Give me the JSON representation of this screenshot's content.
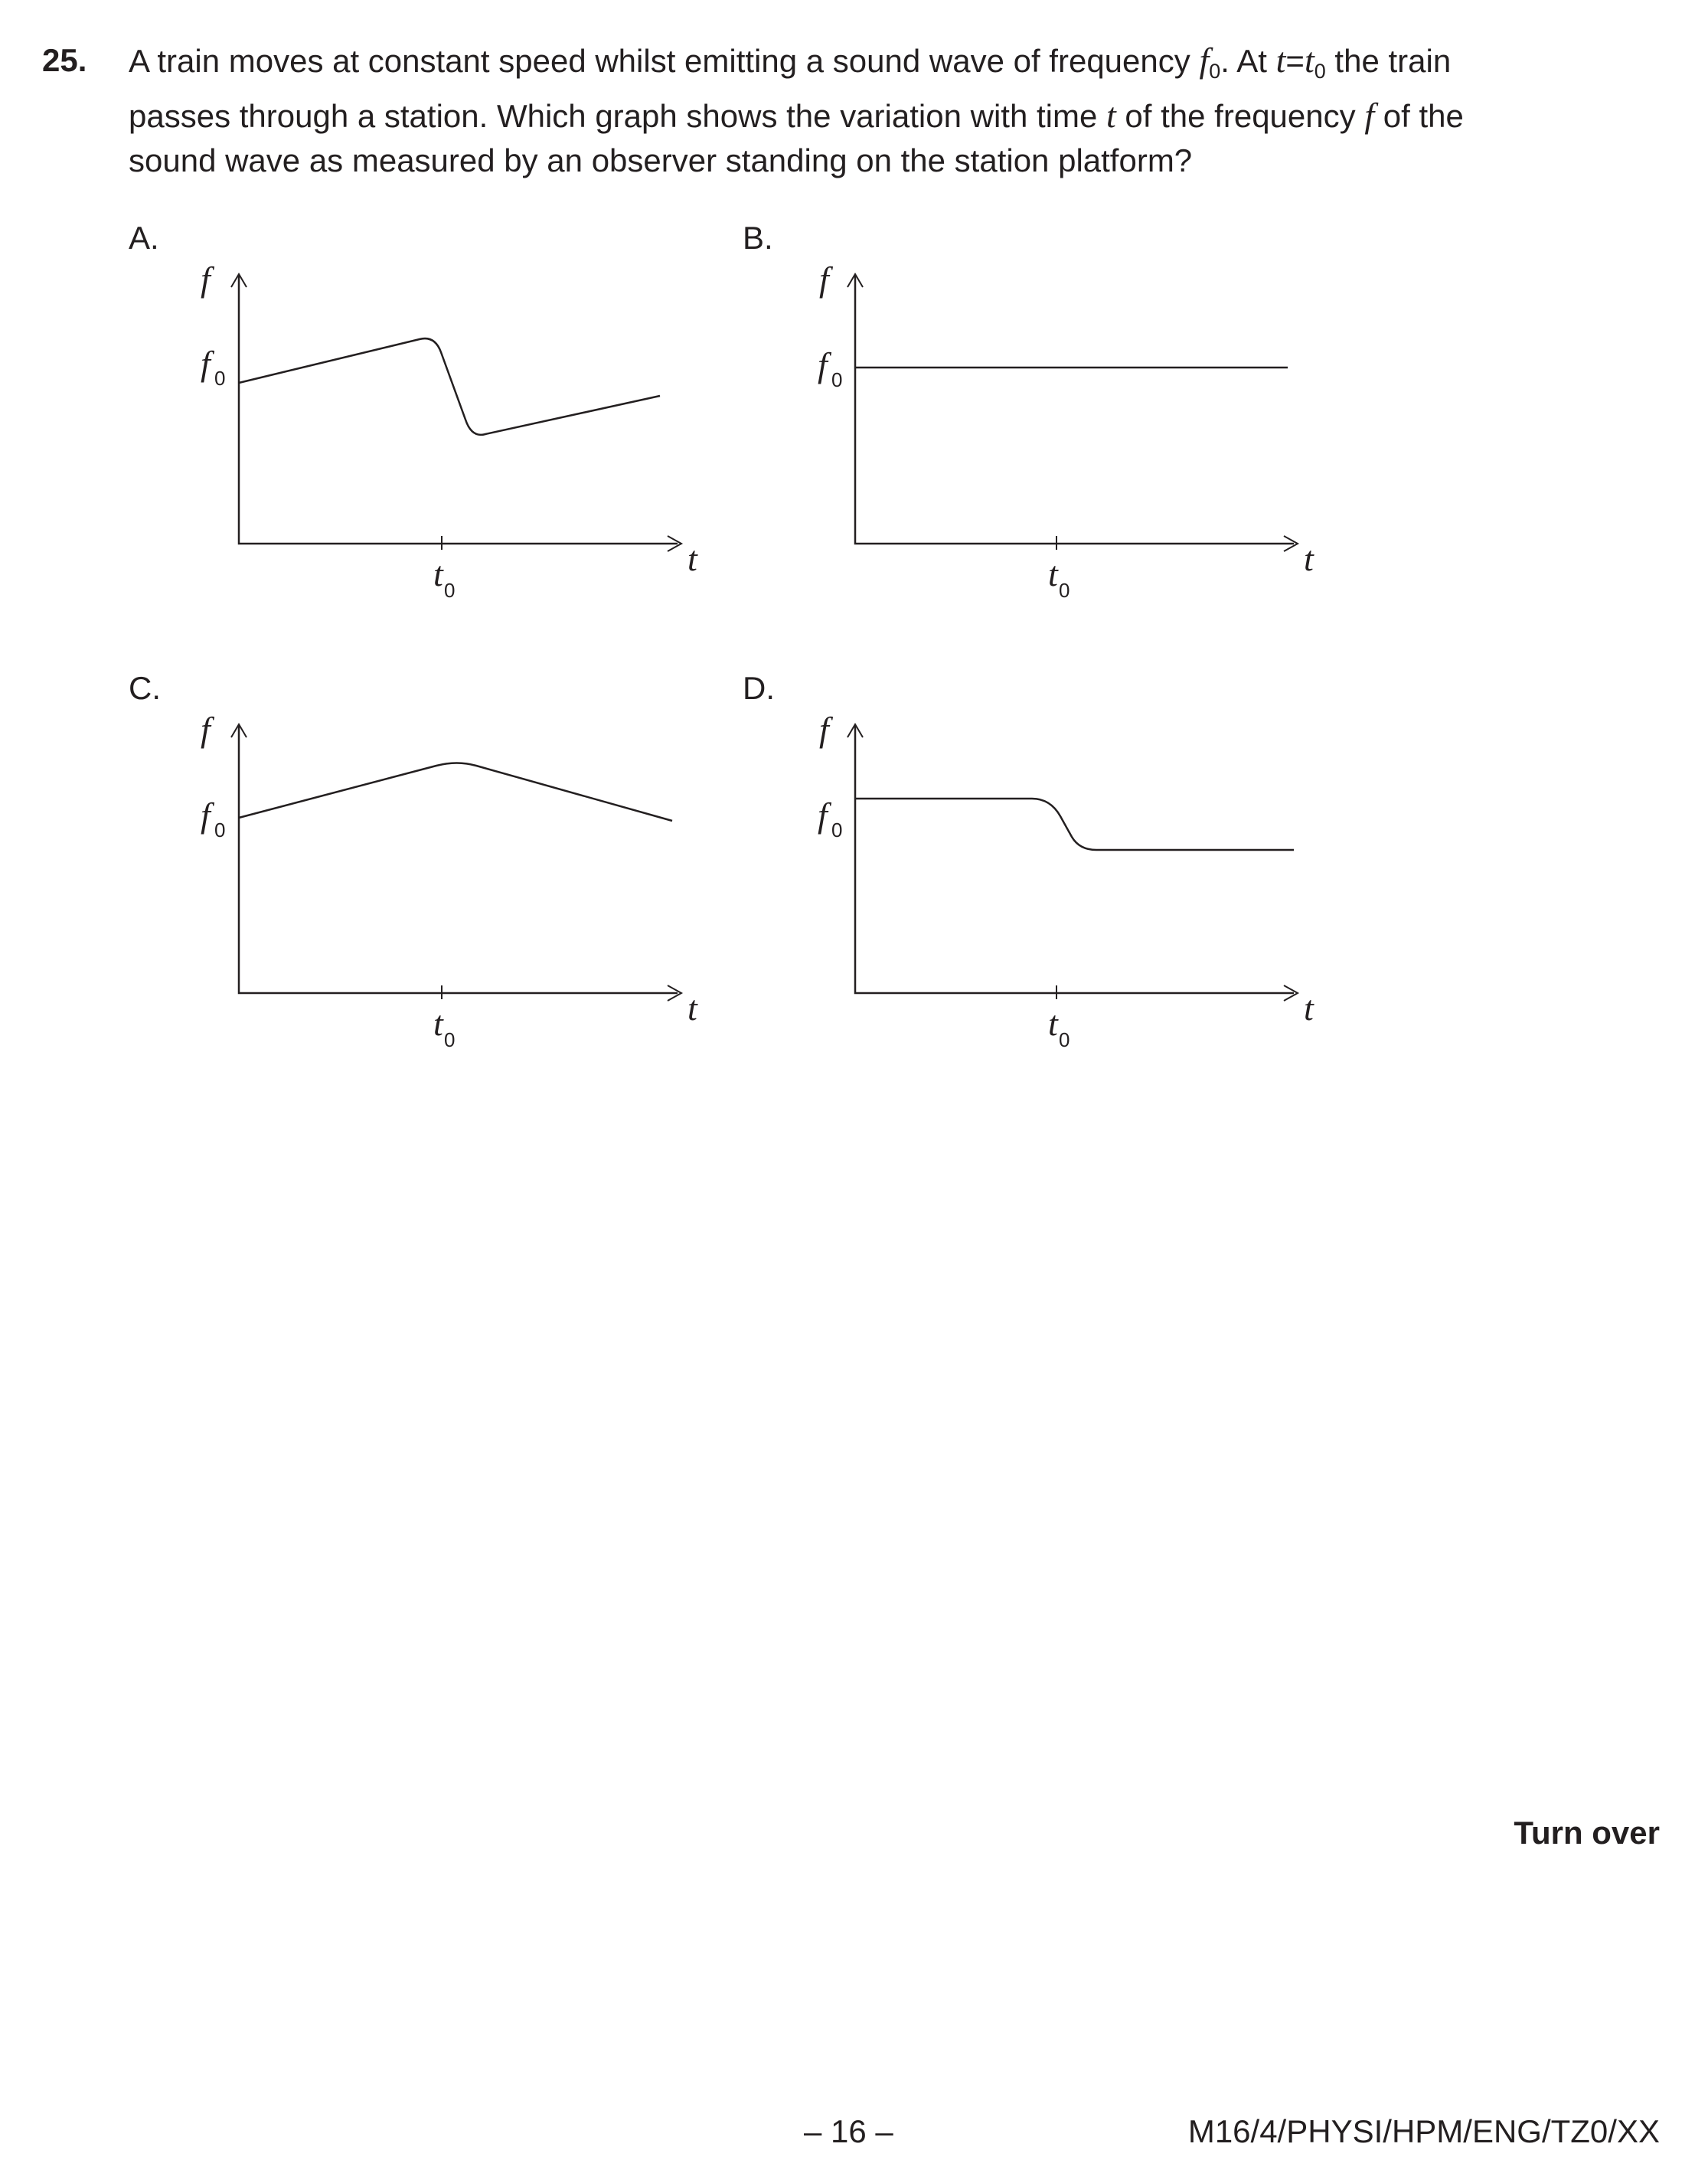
{
  "question": {
    "number": "25.",
    "line1": {
      "a": "A train moves at constant speed whilst emitting a sound wave of frequency ",
      "f": "f",
      "f_sub": "0",
      "b": ".  At ",
      "t": "t",
      "eq": "=",
      "t2": "t",
      "t_sub": "0",
      "c": " the train"
    },
    "line2": {
      "a": "passes through a station.  Which graph shows the variation with time ",
      "t": "t",
      "b": " of the frequency ",
      "f": "f",
      "c": " of the"
    },
    "line3": "sound wave as measured by an observer standing on the station platform?"
  },
  "options": [
    {
      "letter": "A.",
      "y_label": "f",
      "f0_label": "f",
      "f0_sub": "0",
      "x_label": "t",
      "t0_label": "t",
      "t0_sub": "0"
    },
    {
      "letter": "B.",
      "y_label": "f",
      "f0_label": "f",
      "f0_sub": "0",
      "x_label": "t",
      "t0_label": "t",
      "t0_sub": "0"
    },
    {
      "letter": "C.",
      "y_label": "f",
      "f0_label": "f",
      "f0_sub": "0",
      "x_label": "t",
      "t0_label": "t",
      "t0_sub": "0"
    },
    {
      "letter": "D.",
      "y_label": "f",
      "f0_label": "f",
      "f0_sub": "0",
      "x_label": "t",
      "t0_label": "t",
      "t0_sub": "0"
    }
  ],
  "footer": {
    "turn_over": "Turn over",
    "page_number": "– 16 –",
    "paper_code": "M16/4/PHYSI/HPM/ENG/TZ0/XX"
  }
}
